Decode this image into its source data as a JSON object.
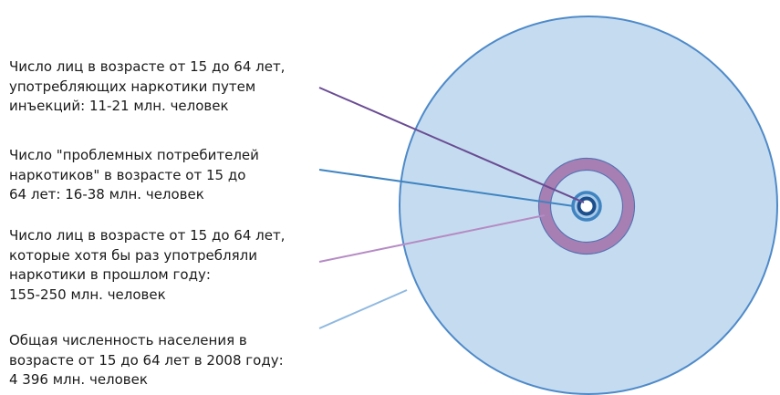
{
  "labels": [
    {
      "id": "injecting-users",
      "text": "Число лиц в возрасте от 15 до 64 лет,\nупотребляющих наркотики путем\nинъекций: 11-21 млн. человек",
      "line_color": "#6a4c93"
    },
    {
      "id": "problem-users",
      "text": "Число \"проблемных потребителей\nнаркотиков\" в возрасте от 15 до\n64 лет: 16-38 млн. человек",
      "line_color": "#3f84c1"
    },
    {
      "id": "annual-users",
      "text": "Число лиц в возрасте от 15 до 64 лет,\nкоторые хотя бы раз употребляли\nнаркотики в прошлом году:\n155-250 млн. человек",
      "line_color": "#b58bc4"
    },
    {
      "id": "total-population",
      "text": "Общая численность населения в\nвозрасте от 15 до 64 лет в 2008 году:\n4 396 млн. человек",
      "line_color": "#8fb9e0"
    }
  ],
  "circles": {
    "population_fill": "#c5dcf0",
    "population_stroke": "#4f8ac9",
    "annual_users_ring": "#a77fb2",
    "problem_users_ring": "#3f84c1",
    "injecting_users_ring": "#1c4f8c"
  }
}
